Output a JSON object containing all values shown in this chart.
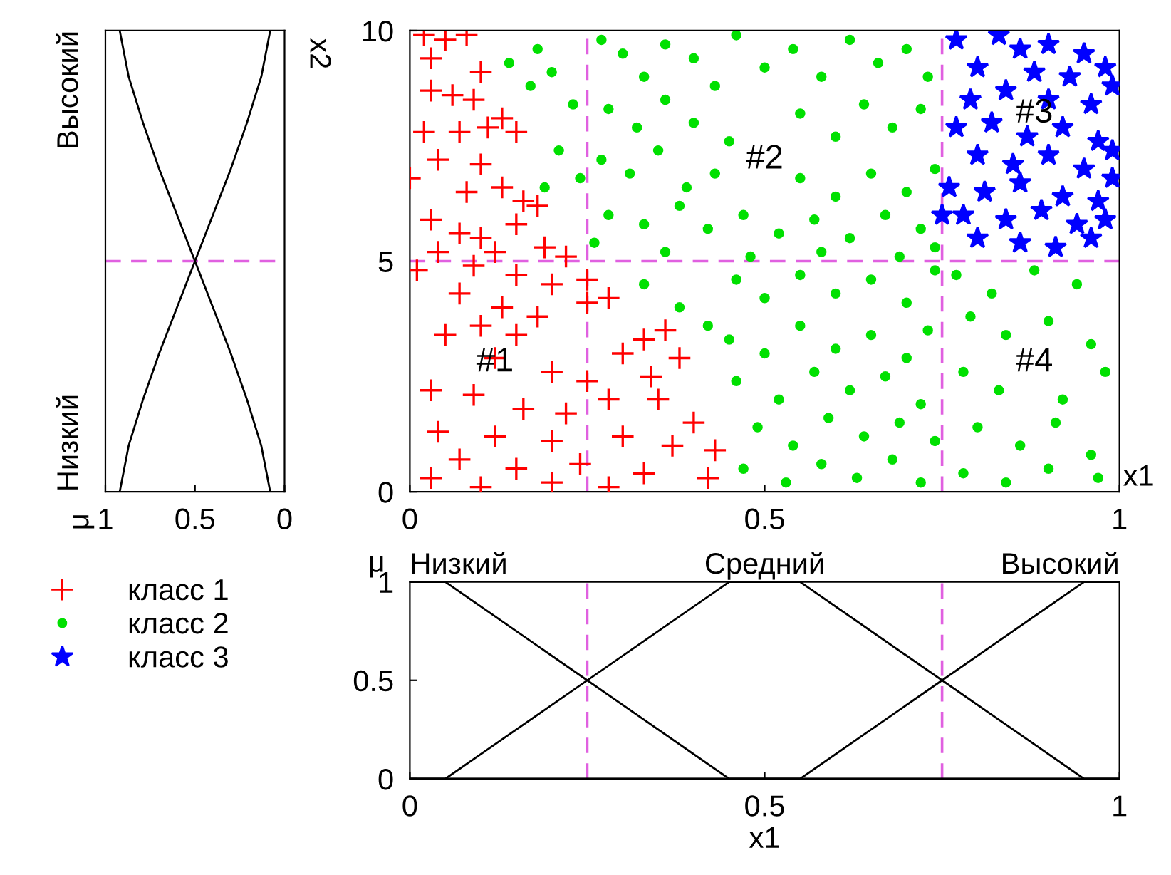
{
  "chart_data": [
    {
      "type": "scatter",
      "xlabel": "x1",
      "ylabel": "x2",
      "xlim": [
        0,
        1
      ],
      "ylim": [
        0,
        10
      ],
      "xticks": [
        0,
        0.5,
        1
      ],
      "yticks": [
        0,
        5,
        10
      ],
      "grid": false,
      "legend": "bottom left",
      "ref_lines": [
        {
          "axis": "x",
          "value": 0.25,
          "color": "#e060e0",
          "line_style": "dashed"
        },
        {
          "axis": "x",
          "value": 0.75,
          "color": "#e060e0",
          "line_style": "dashed"
        },
        {
          "axis": "y",
          "value": 5,
          "color": "#e060e0",
          "line_style": "dashed"
        }
      ],
      "annotations": [
        "#1",
        "#2",
        "#3",
        "#4"
      ],
      "series": [
        {
          "name": "класс 1",
          "color": "#ff0000",
          "marker": "cross",
          "x": [
            0.02,
            0.05,
            0.08,
            0.03,
            0.1,
            0.03,
            0.06,
            0.09,
            0.02,
            0.07,
            0.11,
            0.13,
            0.15,
            0.04,
            0.1,
            0.0,
            0.08,
            0.13,
            0.16,
            0.18,
            0.15,
            0.03,
            0.07,
            0.1,
            0.04,
            0.12,
            0.19,
            0.22,
            0.01,
            0.09,
            0.15,
            0.2,
            0.25,
            0.28,
            0.25,
            0.07,
            0.13,
            0.18,
            0.1,
            0.05,
            0.15,
            0.33,
            0.36,
            0.3,
            0.38,
            0.12,
            0.2,
            0.25,
            0.34,
            0.03,
            0.09,
            0.28,
            0.35,
            0.16,
            0.22,
            0.4,
            0.04,
            0.12,
            0.2,
            0.3,
            0.37,
            0.43,
            0.07,
            0.15,
            0.24,
            0.33,
            0.42,
            0.03,
            0.1,
            0.2,
            0.28
          ],
          "values": [
            9.9,
            9.8,
            9.9,
            9.4,
            9.1,
            8.7,
            8.6,
            8.5,
            7.8,
            7.8,
            7.9,
            8.1,
            7.8,
            7.2,
            7.1,
            6.8,
            6.5,
            6.6,
            6.3,
            6.2,
            5.8,
            5.9,
            5.6,
            5.5,
            5.2,
            5.2,
            5.3,
            5.1,
            4.8,
            4.9,
            4.7,
            4.5,
            4.6,
            4.2,
            4.1,
            4.3,
            4.0,
            3.8,
            3.6,
            3.4,
            3.4,
            3.3,
            3.5,
            3.0,
            2.9,
            2.9,
            2.6,
            2.4,
            2.5,
            2.2,
            2.1,
            2.0,
            2.0,
            1.8,
            1.7,
            1.5,
            1.3,
            1.2,
            1.1,
            1.2,
            1.0,
            0.9,
            0.7,
            0.5,
            0.6,
            0.4,
            0.3,
            0.3,
            0.1,
            0.2,
            0.1
          ]
        },
        {
          "name": "класс 2",
          "color": "#00e000",
          "marker": "circle",
          "x": [
            0.14,
            0.18,
            0.2,
            0.23,
            0.17,
            0.21,
            0.24,
            0.19,
            0.27,
            0.3,
            0.33,
            0.36,
            0.4,
            0.43,
            0.46,
            0.5,
            0.54,
            0.58,
            0.62,
            0.66,
            0.7,
            0.73,
            0.28,
            0.32,
            0.36,
            0.4,
            0.45,
            0.55,
            0.6,
            0.64,
            0.68,
            0.72,
            0.27,
            0.31,
            0.35,
            0.39,
            0.43,
            0.55,
            0.6,
            0.65,
            0.7,
            0.74,
            0.28,
            0.33,
            0.38,
            0.42,
            0.47,
            0.52,
            0.57,
            0.62,
            0.67,
            0.72,
            0.26,
            0.36,
            0.48,
            0.58,
            0.69,
            0.74,
            0.33,
            0.38,
            0.42,
            0.46,
            0.5,
            0.55,
            0.6,
            0.65,
            0.7,
            0.74,
            0.45,
            0.5,
            0.55,
            0.6,
            0.65,
            0.7,
            0.73,
            0.46,
            0.52,
            0.57,
            0.62,
            0.67,
            0.72,
            0.49,
            0.54,
            0.59,
            0.64,
            0.69,
            0.74,
            0.47,
            0.53,
            0.58,
            0.63,
            0.68,
            0.72,
            0.77,
            0.82,
            0.88,
            0.94,
            0.79,
            0.84,
            0.9,
            0.96,
            0.78,
            0.83,
            0.92,
            0.98,
            0.8,
            0.86,
            0.91,
            0.96,
            0.78,
            0.84,
            0.9,
            0.97
          ],
          "values": [
            9.3,
            9.6,
            9.1,
            8.4,
            8.8,
            7.4,
            6.8,
            6.6,
            9.8,
            9.5,
            9.0,
            9.7,
            9.4,
            8.8,
            9.9,
            9.2,
            9.6,
            9.0,
            9.8,
            9.3,
            9.6,
            9.0,
            8.3,
            7.9,
            8.5,
            8.0,
            7.6,
            8.2,
            7.7,
            8.4,
            7.9,
            8.3,
            7.2,
            6.9,
            7.4,
            6.6,
            6.9,
            6.8,
            6.4,
            6.9,
            6.5,
            7.0,
            6.0,
            5.8,
            6.2,
            5.7,
            6.0,
            5.6,
            5.9,
            5.5,
            6.0,
            5.7,
            5.4,
            5.2,
            5.1,
            5.2,
            5.1,
            5.3,
            4.5,
            4.0,
            3.6,
            4.6,
            4.2,
            4.7,
            4.3,
            4.6,
            4.1,
            4.8,
            3.3,
            3.0,
            3.6,
            3.1,
            3.4,
            2.9,
            3.5,
            2.4,
            2.0,
            2.6,
            2.2,
            2.5,
            1.9,
            1.4,
            1.0,
            1.6,
            1.2,
            1.5,
            1.1,
            0.5,
            0.2,
            0.6,
            0.3,
            0.7,
            0.2,
            4.7,
            4.3,
            4.8,
            4.5,
            3.8,
            3.4,
            3.7,
            3.2,
            2.6,
            2.2,
            2.0,
            2.6,
            1.4,
            1.0,
            1.5,
            0.8,
            0.4,
            0.2,
            0.5,
            0.3
          ]
        },
        {
          "name": "класс 3",
          "color": "#0000ff",
          "marker": "star",
          "x": [
            0.77,
            0.83,
            0.86,
            0.9,
            0.95,
            0.98,
            0.8,
            0.88,
            0.93,
            0.79,
            0.84,
            0.9,
            0.96,
            0.99,
            0.77,
            0.82,
            0.87,
            0.92,
            0.97,
            0.8,
            0.85,
            0.9,
            0.95,
            0.99,
            0.76,
            0.81,
            0.86,
            0.92,
            0.97,
            0.99,
            0.78,
            0.84,
            0.89,
            0.94,
            0.98,
            0.8,
            0.86,
            0.91,
            0.96,
            0.75
          ],
          "values": [
            9.8,
            9.9,
            9.6,
            9.7,
            9.5,
            9.2,
            9.2,
            9.1,
            9.0,
            8.5,
            8.7,
            8.5,
            8.4,
            8.8,
            7.9,
            8.0,
            7.7,
            7.9,
            7.6,
            7.3,
            7.1,
            7.3,
            7.0,
            7.4,
            6.6,
            6.5,
            6.7,
            6.4,
            6.3,
            6.8,
            6.0,
            5.9,
            6.1,
            5.8,
            5.9,
            5.5,
            5.4,
            5.3,
            5.5,
            6.0
          ]
        }
      ]
    },
    {
      "type": "line",
      "xlim": [
        1,
        0
      ],
      "xticks": [
        1,
        0.5,
        0
      ],
      "ylim": [
        0,
        10
      ],
      "tick_labels": "x",
      "marker": "none",
      "line_style": "solid",
      "annotations": [
        "μ",
        "Низкий",
        "Высокий"
      ],
      "ref_lines": [
        {
          "axis": "y",
          "value": 5,
          "color": "#e060e0",
          "line_style": "dashed"
        }
      ],
      "series": [
        {
          "color": "#000000",
          "x": [
            0.92,
            0.87,
            0.79,
            0.7,
            0.6,
            0.5,
            0.4,
            0.3,
            0.21,
            0.13,
            0.08
          ],
          "values": [
            0,
            1,
            2,
            3,
            4,
            5,
            6,
            7,
            8,
            9,
            10
          ]
        },
        {
          "color": "#000000",
          "x": [
            0.08,
            0.13,
            0.21,
            0.3,
            0.4,
            0.5,
            0.6,
            0.7,
            0.79,
            0.87,
            0.92
          ],
          "values": [
            0,
            1,
            2,
            3,
            4,
            5,
            6,
            7,
            8,
            9,
            10
          ]
        }
      ]
    },
    {
      "type": "line",
      "xlabel": "x1",
      "ylabel": "μ",
      "xlim": [
        0,
        1
      ],
      "ylim": [
        0,
        1
      ],
      "xticks": [
        0,
        0.5,
        1
      ],
      "yticks": [
        0,
        0.5,
        1
      ],
      "marker": "none",
      "line_style": "solid",
      "annotations": [
        "Низкий",
        "Средний",
        "Высокий"
      ],
      "ref_lines": [
        {
          "axis": "x",
          "value": 0.25,
          "color": "#e060e0",
          "line_style": "dashed"
        },
        {
          "axis": "x",
          "value": 0.75,
          "color": "#e060e0",
          "line_style": "dashed"
        }
      ],
      "series": [
        {
          "color": "#000000",
          "x": [
            0,
            0.05,
            0.45,
            1
          ],
          "values": [
            1,
            1,
            0,
            0
          ]
        },
        {
          "color": "#000000",
          "x": [
            0,
            0.05,
            0.45,
            0.55,
            0.95,
            1
          ],
          "values": [
            0,
            0,
            1,
            1,
            0,
            0
          ]
        },
        {
          "color": "#000000",
          "x": [
            0,
            0.55,
            0.95,
            1
          ],
          "values": [
            0,
            0,
            1,
            1
          ]
        }
      ]
    }
  ]
}
